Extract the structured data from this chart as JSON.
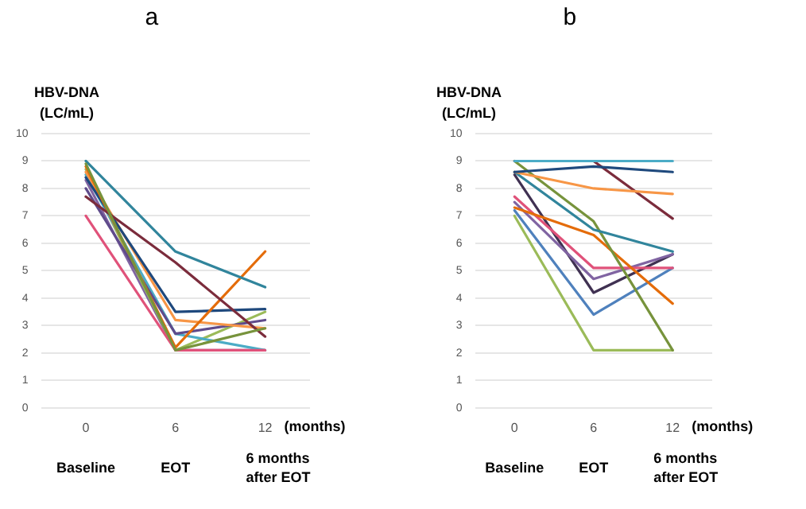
{
  "chart_data": [
    {
      "type": "line",
      "title": "a",
      "ylabel": "HBV-DNA\n(LC/mL)",
      "xlabel": "(months)",
      "categories": [
        "0",
        "6",
        "12"
      ],
      "ylim": [
        0,
        10
      ],
      "yticks": [
        0,
        1,
        2,
        3,
        4,
        5,
        6,
        7,
        8,
        9,
        10
      ],
      "grid": "y",
      "legend": false,
      "marker": "none",
      "annotations": [
        "Baseline",
        "EOT",
        "6 months\nafter EOT"
      ],
      "series": [
        {
          "color": "#77933c",
          "values": [
            8.9,
            2.1,
            2.9
          ]
        },
        {
          "color": "#31859c",
          "values": [
            9.0,
            5.7,
            4.4
          ]
        },
        {
          "color": "#7b2c3c",
          "values": [
            7.7,
            5.3,
            2.6
          ]
        },
        {
          "color": "#e0527a",
          "values": [
            7.0,
            2.1,
            2.1
          ]
        },
        {
          "color": "#e46c0a",
          "values": [
            8.8,
            2.2,
            5.7
          ]
        },
        {
          "color": "#1f497d",
          "values": [
            8.4,
            3.5,
            3.6
          ]
        },
        {
          "color": "#f79646",
          "values": [
            8.6,
            3.2,
            2.9
          ]
        },
        {
          "color": "#5f4b8b",
          "values": [
            8.0,
            2.7,
            3.2
          ]
        },
        {
          "color": "#4bacc6",
          "values": [
            8.5,
            2.7,
            2.1
          ]
        },
        {
          "color": "#9bbb59",
          "values": [
            8.7,
            2.1,
            3.5
          ]
        },
        {
          "color": "#8064a2",
          "values": [
            8.3,
            2.1,
            2.1
          ]
        }
      ]
    },
    {
      "type": "line",
      "title": "b",
      "ylabel": "HBV-DNA\n(LC/mL)",
      "xlabel": "(months)",
      "categories": [
        "0",
        "6",
        "12"
      ],
      "ylim": [
        0,
        10
      ],
      "yticks": [
        0,
        1,
        2,
        3,
        4,
        5,
        6,
        7,
        8,
        9,
        10
      ],
      "grid": "y",
      "legend": false,
      "marker": "none",
      "annotations": [
        "Baseline",
        "EOT",
        "6 months\nafter EOT"
      ],
      "series": [
        {
          "color": "#4bacc6",
          "values": [
            9.0,
            9.0,
            9.0
          ]
        },
        {
          "color": "#1f497d",
          "values": [
            8.6,
            8.8,
            8.6
          ]
        },
        {
          "color": "#f79646",
          "values": [
            8.6,
            8.0,
            7.8
          ]
        },
        {
          "color": "#7b2c3c",
          "values": [
            9.0,
            9.0,
            6.9
          ]
        },
        {
          "color": "#31859c",
          "values": [
            8.6,
            6.5,
            5.7
          ]
        },
        {
          "color": "#77933c",
          "values": [
            9.0,
            6.8,
            2.1
          ]
        },
        {
          "color": "#e46c0a",
          "values": [
            7.3,
            6.3,
            3.8
          ]
        },
        {
          "color": "#e0527a",
          "values": [
            7.7,
            5.1,
            5.1
          ]
        },
        {
          "color": "#8064a2",
          "values": [
            7.5,
            4.7,
            5.6
          ]
        },
        {
          "color": "#403152",
          "values": [
            8.5,
            4.2,
            5.6
          ]
        },
        {
          "color": "#4f81bd",
          "values": [
            7.2,
            3.4,
            5.1
          ]
        },
        {
          "color": "#9bbb59",
          "values": [
            7.0,
            2.1,
            2.1
          ]
        }
      ]
    }
  ]
}
